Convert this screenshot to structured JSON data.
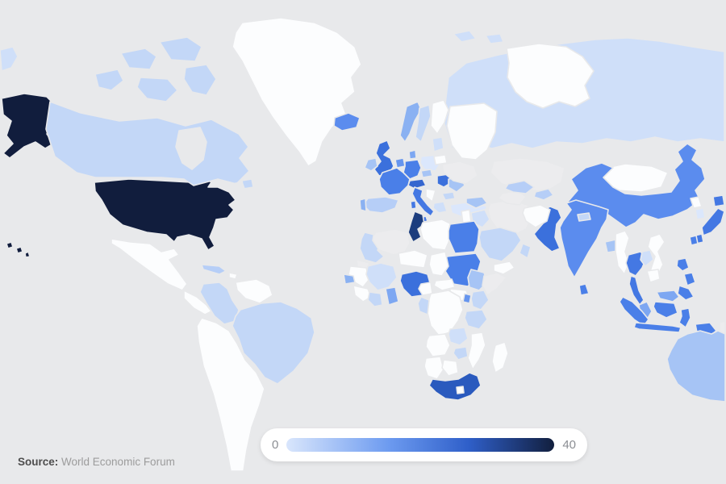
{
  "source": {
    "prefix": "Source:",
    "text": "World Economic Forum"
  },
  "palette": {
    "ocean": "#e8e9eb",
    "white": "#fcfdfe",
    "pale": "#cfdff9",
    "gray": "#ececee"
  },
  "legend": {
    "background": "#ffffff",
    "label_color": "#8b8e93"
  },
  "chart_data": {
    "type": "heatmap",
    "subtype": "choropleth-world-map",
    "title": "",
    "legend_position": "bottom-center",
    "scale": {
      "min": 0,
      "max": 40,
      "min_label": "0",
      "max_label": "40",
      "gradient": [
        "#d9e6fc",
        "#6d9bf0",
        "#2f5fc9",
        "#121f3e"
      ],
      "gradient_stops_pct": [
        0,
        38,
        68,
        100
      ],
      "no_data_color": "#ececee"
    },
    "regions": [
      {
        "id": "russia",
        "name": "Russia",
        "value_estimate": 3,
        "color": "#cfdff9"
      },
      {
        "id": "usa",
        "name": "United States",
        "value_estimate": 40,
        "color": "#111d3d"
      },
      {
        "id": "canada",
        "name": "Canada",
        "value_estimate": 5,
        "color": "#c3d7f7"
      },
      {
        "id": "greenland",
        "name": "Greenland",
        "value_estimate": 0,
        "color": "#fcfdfe"
      },
      {
        "id": "mexico",
        "name": "Mexico",
        "value_estimate": 0,
        "color": "#fcfdfe"
      },
      {
        "id": "central-america",
        "name": "Central America",
        "value_estimate": 0,
        "color": "#fcfdfe"
      },
      {
        "id": "cuba",
        "name": "Cuba",
        "value_estimate": 7,
        "color": "#b6cef7"
      },
      {
        "id": "hispaniola",
        "name": "Hispaniola",
        "value_estimate": 0,
        "color": "#fcfdfe"
      },
      {
        "id": "colombia",
        "name": "Colombia",
        "value_estimate": 5,
        "color": "#c3d7f7"
      },
      {
        "id": "venezuela",
        "name": "Venezuela and Guianas",
        "value_estimate": 0,
        "color": "#fcfdfe"
      },
      {
        "id": "brazil",
        "name": "Brazil",
        "value_estimate": 5,
        "color": "#c3d7f7"
      },
      {
        "id": "southern-cone",
        "name": "Peru, Chile and Argentina",
        "value_estimate": 0,
        "color": "#fcfdfe"
      },
      {
        "id": "iceland",
        "name": "Iceland",
        "value_estimate": 18,
        "color": "#5b8cee"
      },
      {
        "id": "uk",
        "name": "United Kingdom",
        "value_estimate": 25,
        "color": "#3b70dc"
      },
      {
        "id": "ireland",
        "name": "Ireland",
        "value_estimate": 9,
        "color": "#a6c4f5"
      },
      {
        "id": "norway",
        "name": "Norway",
        "value_estimate": 12,
        "color": "#8ab1f2"
      },
      {
        "id": "sweden",
        "name": "Sweden",
        "value_estimate": 5,
        "color": "#c3d7f7"
      },
      {
        "id": "finland",
        "name": "Finland",
        "value_estimate": 0,
        "color": "#fcfdfe"
      },
      {
        "id": "baltics",
        "name": "Baltic states",
        "value_estimate": 3,
        "color": "#cfdff9"
      },
      {
        "id": "denmark",
        "name": "Denmark",
        "value_estimate": 14,
        "color": "#7da7f2"
      },
      {
        "id": "germany",
        "name": "Germany",
        "value_estimate": 21,
        "color": "#4a7fe8"
      },
      {
        "id": "benelux",
        "name": "Benelux",
        "value_estimate": 16,
        "color": "#6695ee"
      },
      {
        "id": "poland",
        "name": "Poland",
        "value_estimate": 2,
        "color": "#dbe7fc"
      },
      {
        "id": "france",
        "name": "France",
        "value_estimate": 21,
        "color": "#4a7fe8"
      },
      {
        "id": "alpine",
        "name": "Switzerland and Austria",
        "value_estimate": 27,
        "color": "#3566cf"
      },
      {
        "id": "czech",
        "name": "Czechia",
        "value_estimate": 9,
        "color": "#a6c4f5"
      },
      {
        "id": "spain",
        "name": "Spain",
        "value_estimate": 7,
        "color": "#b6cef7"
      },
      {
        "id": "portugal",
        "name": "Portugal",
        "value_estimate": 12,
        "color": "#8ab1f2"
      },
      {
        "id": "italy",
        "name": "Italy",
        "value_estimate": 23,
        "color": "#4478e3"
      },
      {
        "id": "hungary",
        "name": "Hungary",
        "value_estimate": 25,
        "color": "#3b70dc"
      },
      {
        "id": "romania",
        "name": "Romania",
        "value_estimate": 9,
        "color": "#a6c4f5"
      },
      {
        "id": "balkans",
        "name": "Balkans",
        "value_estimate": 0,
        "color": "#fcfdfe"
      },
      {
        "id": "bulgaria",
        "name": "Bulgaria",
        "value_estimate": 5,
        "color": "#c3d7f7"
      },
      {
        "id": "greece",
        "name": "Greece",
        "value_estimate": 3,
        "color": "#cfdff9"
      },
      {
        "id": "ukraine",
        "name": "Ukraine",
        "value_estimate": null,
        "color": "#ececee"
      },
      {
        "id": "belarus",
        "name": "Belarus",
        "value_estimate": 0,
        "color": "#fcfdfe"
      },
      {
        "id": "turkey",
        "name": "Turkiye",
        "value_estimate": 2,
        "color": "#dbe7fc"
      },
      {
        "id": "kazakhstan",
        "name": "Kazakhstan",
        "value_estimate": null,
        "color": "#ececee"
      },
      {
        "id": "mongolia",
        "name": "Mongolia",
        "value_estimate": 0,
        "color": "#fcfdfe"
      },
      {
        "id": "china",
        "name": "China",
        "value_estimate": 18,
        "color": "#5b8cee"
      },
      {
        "id": "north-korea",
        "name": "North Korea",
        "value_estimate": 0,
        "color": "#fcfdfe"
      },
      {
        "id": "south-korea",
        "name": "South Korea",
        "value_estimate": 2,
        "color": "#dbe7fc"
      },
      {
        "id": "japan",
        "name": "Japan",
        "value_estimate": 23,
        "color": "#4478e3"
      },
      {
        "id": "india",
        "name": "India",
        "value_estimate": 18,
        "color": "#5b8cee"
      },
      {
        "id": "pakistan",
        "name": "Pakistan",
        "value_estimate": 25,
        "color": "#3b70dc"
      },
      {
        "id": "nepal",
        "name": "Nepal",
        "value_estimate": 5,
        "color": "#c3d7f7"
      },
      {
        "id": "bangladesh",
        "name": "Bangladesh",
        "value_estimate": 9,
        "color": "#a6c4f5"
      },
      {
        "id": "sri-lanka",
        "name": "Sri Lanka",
        "value_estimate": 21,
        "color": "#4a7fe8"
      },
      {
        "id": "myanmar",
        "name": "Myanmar",
        "value_estimate": 0,
        "color": "#fcfdfe"
      },
      {
        "id": "thailand",
        "name": "Thailand",
        "value_estimate": 23,
        "color": "#4478e3"
      },
      {
        "id": "laos",
        "name": "Laos",
        "value_estimate": 3,
        "color": "#cfdff9"
      },
      {
        "id": "vietnam",
        "name": "Vietnam",
        "value_estimate": 0,
        "color": "#fcfdfe"
      },
      {
        "id": "cambodia",
        "name": "Cambodia",
        "value_estimate": 0,
        "color": "#fcfdfe"
      },
      {
        "id": "malaysia",
        "name": "Malaysia",
        "value_estimate": 14,
        "color": "#7da7f2"
      },
      {
        "id": "indonesia",
        "name": "Indonesia",
        "value_estimate": 21,
        "color": "#4a7fe8"
      },
      {
        "id": "philippines",
        "name": "Philippines",
        "value_estimate": 21,
        "color": "#4a7fe8"
      },
      {
        "id": "taiwan",
        "name": "Taiwan",
        "value_estimate": 21,
        "color": "#4a7fe8"
      },
      {
        "id": "papua-new-guinea",
        "name": "Papua New Guinea",
        "value_estimate": null,
        "color": "#ececee"
      },
      {
        "id": "australia",
        "name": "Australia",
        "value_estimate": 9,
        "color": "#a6c4f5"
      },
      {
        "id": "iran",
        "name": "Iran",
        "value_estimate": null,
        "color": "#ececee"
      },
      {
        "id": "iraq",
        "name": "Iraq",
        "value_estimate": 3,
        "color": "#cfdff9"
      },
      {
        "id": "levant",
        "name": "Levant",
        "value_estimate": 0,
        "color": "#fcfdfe"
      },
      {
        "id": "caucasus",
        "name": "Caucasus",
        "value_estimate": 9,
        "color": "#a6c4f5"
      },
      {
        "id": "saudi-arabia",
        "name": "Saudi Arabia",
        "value_estimate": 5,
        "color": "#c3d7f7"
      },
      {
        "id": "yemen",
        "name": "Yemen",
        "value_estimate": 0,
        "color": "#fcfdfe"
      },
      {
        "id": "oman",
        "name": "Oman",
        "value_estimate": 5,
        "color": "#c3d7f7"
      },
      {
        "id": "turkmenistan",
        "name": "Turkmenistan",
        "value_estimate": null,
        "color": "#ececee"
      },
      {
        "id": "uzbekistan",
        "name": "Uzbekistan",
        "value_estimate": 7,
        "color": "#b6cef7"
      },
      {
        "id": "kyrgyzstan",
        "name": "Kyrgyzstan and Tajikistan",
        "value_estimate": 7,
        "color": "#b6cef7"
      },
      {
        "id": "afghanistan",
        "name": "Afghanistan",
        "value_estimate": 0,
        "color": "#fcfdfe"
      },
      {
        "id": "morocco",
        "name": "Morocco",
        "value_estimate": 5,
        "color": "#c3d7f7"
      },
      {
        "id": "western-sahara",
        "name": "Western Sahara",
        "value_estimate": null,
        "color": "#ececee"
      },
      {
        "id": "algeria",
        "name": "Algeria",
        "value_estimate": null,
        "color": "#ececee"
      },
      {
        "id": "tunisia",
        "name": "Tunisia",
        "value_estimate": 34,
        "color": "#1c3d7e"
      },
      {
        "id": "libya",
        "name": "Libya",
        "value_estimate": 0,
        "color": "#fcfdfe"
      },
      {
        "id": "egypt",
        "name": "Egypt",
        "value_estimate": 21,
        "color": "#4a7fe8"
      },
      {
        "id": "sudan",
        "name": "Sudan",
        "value_estimate": 21,
        "color": "#4a7fe8"
      },
      {
        "id": "south-sudan",
        "name": "South Sudan",
        "value_estimate": 0,
        "color": "#fcfdfe"
      },
      {
        "id": "mauritania",
        "name": "Mauritania",
        "value_estimate": 0,
        "color": "#fcfdfe"
      },
      {
        "id": "mali",
        "name": "Mali",
        "value_estimate": 3,
        "color": "#cfdff9"
      },
      {
        "id": "senegal",
        "name": "Senegal",
        "value_estimate": 12,
        "color": "#8ab1f2"
      },
      {
        "id": "guinea",
        "name": "Guinea",
        "value_estimate": 0,
        "color": "#fcfdfe"
      },
      {
        "id": "ivory-coast",
        "name": "Cote d'Ivoire",
        "value_estimate": 5,
        "color": "#c3d7f7"
      },
      {
        "id": "ghana",
        "name": "Ghana",
        "value_estimate": 14,
        "color": "#7da7f2"
      },
      {
        "id": "nigeria",
        "name": "Nigeria",
        "value_estimate": 25,
        "color": "#3b70dc"
      },
      {
        "id": "niger",
        "name": "Niger",
        "value_estimate": 0,
        "color": "#fcfdfe"
      },
      {
        "id": "chad",
        "name": "Chad",
        "value_estimate": 0,
        "color": "#fcfdfe"
      },
      {
        "id": "cameroon",
        "name": "Cameroon",
        "value_estimate": 0,
        "color": "#fcfdfe"
      },
      {
        "id": "car",
        "name": "Central African Republic",
        "value_estimate": 0,
        "color": "#fcfdfe"
      },
      {
        "id": "ethiopia",
        "name": "Ethiopia",
        "value_estimate": 9,
        "color": "#a6c4f5"
      },
      {
        "id": "somalia",
        "name": "Somalia",
        "value_estimate": null,
        "color": "#ececee"
      },
      {
        "id": "kenya",
        "name": "Kenya",
        "value_estimate": 5,
        "color": "#c3d7f7"
      },
      {
        "id": "uganda",
        "name": "Uganda",
        "value_estimate": 16,
        "color": "#6695ee"
      },
      {
        "id": "tanzania",
        "name": "Tanzania",
        "value_estimate": 5,
        "color": "#c3d7f7"
      },
      {
        "id": "drc",
        "name": "DR Congo",
        "value_estimate": 0,
        "color": "#fcfdfe"
      },
      {
        "id": "congo",
        "name": "Congo",
        "value_estimate": 5,
        "color": "#c3d7f7"
      },
      {
        "id": "angola",
        "name": "Angola",
        "value_estimate": 0,
        "color": "#fcfdfe"
      },
      {
        "id": "zambia",
        "name": "Zambia",
        "value_estimate": 3,
        "color": "#cfdff9"
      },
      {
        "id": "zimbabwe",
        "name": "Zimbabwe",
        "value_estimate": 5,
        "color": "#c3d7f7"
      },
      {
        "id": "mozambique",
        "name": "Mozambique",
        "value_estimate": 0,
        "color": "#fcfdfe"
      },
      {
        "id": "namibia",
        "name": "Namibia",
        "value_estimate": 0,
        "color": "#fcfdfe"
      },
      {
        "id": "botswana",
        "name": "Botswana",
        "value_estimate": 0,
        "color": "#fcfdfe"
      },
      {
        "id": "south-africa",
        "name": "South Africa",
        "value_estimate": 29,
        "color": "#2a5abe"
      },
      {
        "id": "lesotho",
        "name": "Lesotho",
        "value_estimate": 0,
        "color": "#fcfdfe"
      },
      {
        "id": "madagascar",
        "name": "Madagascar",
        "value_estimate": 0,
        "color": "#fcfdfe"
      }
    ]
  }
}
